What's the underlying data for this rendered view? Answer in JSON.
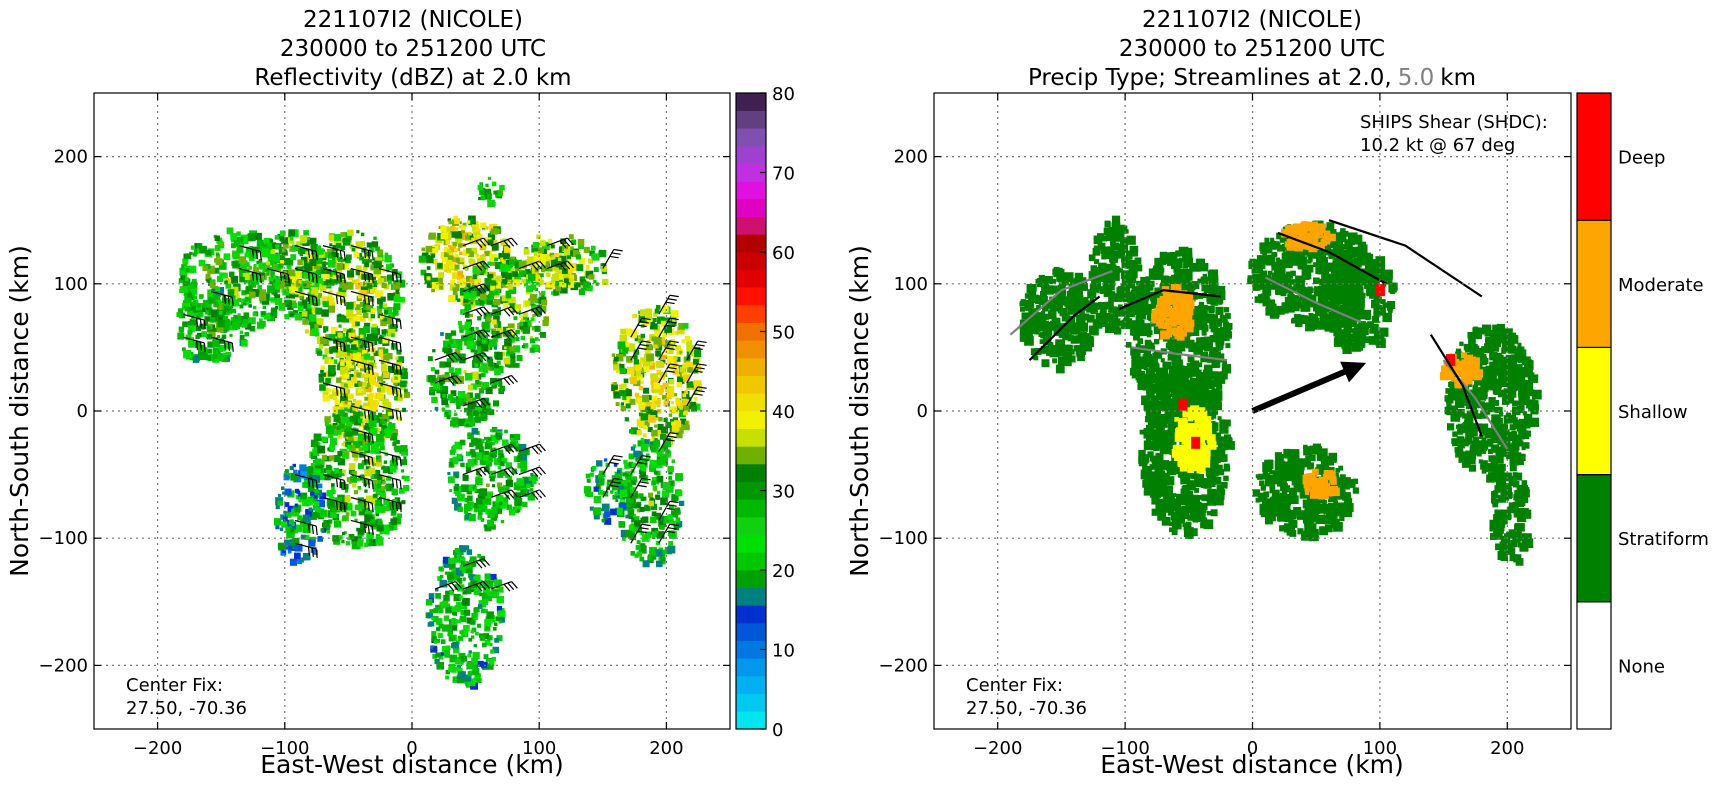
{
  "chart_data": [
    {
      "type": "heatmap",
      "title_lines": [
        "221107I2 (NICOLE)",
        "230000 to 251200 UTC",
        "Reflectivity (dBZ) at 2.0 km"
      ],
      "xlabel": "East-West distance (km)",
      "ylabel": "North-South distance (km)",
      "xlim": [
        -250,
        250
      ],
      "ylim": [
        -250,
        250
      ],
      "xticks": [
        -200,
        -100,
        0,
        100,
        200
      ],
      "yticks": [
        -200,
        -100,
        0,
        100,
        200
      ],
      "xtick_labels": [
        "−200",
        "−100",
        "0",
        "100",
        "200"
      ],
      "ytick_labels": [
        "−200",
        "−100",
        "0",
        "100",
        "200"
      ],
      "grid": true,
      "annotation_lines": [
        "Center Fix:",
        "27.50, -70.36"
      ],
      "colorbar": {
        "min": 0,
        "max": 80,
        "tick_values": [
          0,
          10,
          20,
          30,
          40,
          50,
          60,
          70,
          80
        ],
        "tick_labels": [
          "0",
          "10",
          "20",
          "30",
          "40",
          "50",
          "60",
          "70",
          "80"
        ],
        "colors": [
          "#00e5ee",
          "#00c8f0",
          "#00b0f0",
          "#0098ea",
          "#0078e0",
          "#0058d8",
          "#0030d0",
          "#008080",
          "#00a000",
          "#00c800",
          "#00e000",
          "#10d010",
          "#00b800",
          "#009800",
          "#008000",
          "#70b000",
          "#c8e000",
          "#f0f000",
          "#f0e000",
          "#f0c800",
          "#f0b000",
          "#f09000",
          "#f07000",
          "#ff4000",
          "#ff1000",
          "#e00000",
          "#c80000",
          "#b00000",
          "#d01070",
          "#e000c0",
          "#e010e0",
          "#c030e0",
          "#a040d0",
          "#8050b0",
          "#604080",
          "#402050"
        ]
      },
      "regions": [
        {
          "x": -140,
          "y": 105,
          "rx": 45,
          "ry": 40,
          "dbz": 25
        },
        {
          "x": -160,
          "y": 70,
          "rx": 30,
          "ry": 30,
          "dbz": 22
        },
        {
          "x": -95,
          "y": 110,
          "rx": 30,
          "ry": 35,
          "dbz": 28
        },
        {
          "x": -50,
          "y": 90,
          "rx": 40,
          "ry": 55,
          "dbz": 30
        },
        {
          "x": -40,
          "y": 20,
          "rx": 35,
          "ry": 50,
          "dbz": 33
        },
        {
          "x": -45,
          "y": -50,
          "rx": 40,
          "ry": 55,
          "dbz": 25
        },
        {
          "x": -90,
          "y": -80,
          "rx": 20,
          "ry": 40,
          "dbz": 14
        },
        {
          "x": 40,
          "y": 120,
          "rx": 35,
          "ry": 35,
          "dbz": 35
        },
        {
          "x": 70,
          "y": 80,
          "rx": 35,
          "ry": 45,
          "dbz": 28
        },
        {
          "x": 115,
          "y": 115,
          "rx": 40,
          "ry": 22,
          "dbz": 30
        },
        {
          "x": 40,
          "y": 30,
          "rx": 30,
          "ry": 40,
          "dbz": 24
        },
        {
          "x": 60,
          "y": -50,
          "rx": 35,
          "ry": 40,
          "dbz": 22
        },
        {
          "x": 40,
          "y": -160,
          "rx": 30,
          "ry": 55,
          "dbz": 20
        },
        {
          "x": 190,
          "y": 30,
          "rx": 35,
          "ry": 55,
          "dbz": 33
        },
        {
          "x": 185,
          "y": -70,
          "rx": 25,
          "ry": 50,
          "dbz": 22
        },
        {
          "x": 150,
          "y": -60,
          "rx": 15,
          "ry": 25,
          "dbz": 18
        },
        {
          "x": 60,
          "y": 175,
          "rx": 10,
          "ry": 12,
          "dbz": 25
        }
      ],
      "cores": [
        {
          "x": -40,
          "y": 20,
          "dbz": 38
        },
        {
          "x": 35,
          "y": 130,
          "dbz": 38
        },
        {
          "x": 200,
          "y": 20,
          "dbz": 40
        },
        {
          "x": 110,
          "y": 120,
          "dbz": 36
        }
      ]
    },
    {
      "type": "heatmap",
      "title_lines": [
        "221107I2 (NICOLE)",
        "230000 to 251200 UTC",
        "Precip Type; Streamlines at 2.0,",
        "5.0",
        "km"
      ],
      "xlabel": "East-West distance (km)",
      "ylabel": "North-South distance (km)",
      "xlim": [
        -250,
        250
      ],
      "ylim": [
        -250,
        250
      ],
      "xticks": [
        -200,
        -100,
        0,
        100,
        200
      ],
      "yticks": [
        -200,
        -100,
        0,
        100,
        200
      ],
      "xtick_labels": [
        "−200",
        "−100",
        "0",
        "100",
        "200"
      ],
      "ytick_labels": [
        "−200",
        "−100",
        "0",
        "100",
        "200"
      ],
      "grid": true,
      "annotation_lines": [
        "Center Fix:",
        "27.50, -70.36"
      ],
      "shear_lines": [
        "SHIPS Shear (SHDC):",
        "10.2 kt @ 67 deg"
      ],
      "shear_vector": {
        "speed_kt": 10.2,
        "direction_deg": 67
      },
      "categories": [
        "None",
        "Stratiform",
        "Shallow",
        "Moderate",
        "Deep"
      ],
      "category_colors": [
        "#ffffff",
        "#008000",
        "#ffff00",
        "#ffa500",
        "#ff0000"
      ],
      "regions": [
        {
          "x": -155,
          "y": 75,
          "rx": 30,
          "ry": 40,
          "cat": "Stratiform"
        },
        {
          "x": -110,
          "y": 110,
          "rx": 20,
          "ry": 45,
          "cat": "Stratiform"
        },
        {
          "x": -60,
          "y": 60,
          "rx": 40,
          "ry": 70,
          "cat": "Stratiform"
        },
        {
          "x": -55,
          "y": -30,
          "rx": 35,
          "ry": 65,
          "cat": "Stratiform"
        },
        {
          "x": 45,
          "y": 110,
          "rx": 50,
          "ry": 40,
          "cat": "Stratiform"
        },
        {
          "x": 80,
          "y": 90,
          "rx": 30,
          "ry": 40,
          "cat": "Stratiform"
        },
        {
          "x": 40,
          "y": -60,
          "rx": 40,
          "ry": 35,
          "cat": "Stratiform"
        },
        {
          "x": 185,
          "y": 10,
          "rx": 35,
          "ry": 60,
          "cat": "Stratiform"
        },
        {
          "x": 200,
          "y": -80,
          "rx": 15,
          "ry": 40,
          "cat": "Stratiform"
        },
        {
          "x": -65,
          "y": 80,
          "rx": 15,
          "ry": 20,
          "cat": "Moderate"
        },
        {
          "x": -50,
          "y": -20,
          "rx": 15,
          "ry": 25,
          "cat": "Shallow"
        },
        {
          "x": 40,
          "y": 140,
          "rx": 20,
          "ry": 10,
          "cat": "Moderate"
        },
        {
          "x": 160,
          "y": 35,
          "rx": 15,
          "ry": 12,
          "cat": "Moderate"
        },
        {
          "x": 50,
          "y": -55,
          "rx": 15,
          "ry": 10,
          "cat": "Moderate"
        }
      ],
      "deep_cores": [
        {
          "x": -45,
          "y": -25
        },
        {
          "x": -55,
          "y": 5
        },
        {
          "x": 155,
          "y": 40
        },
        {
          "x": 100,
          "y": 95
        }
      ]
    }
  ]
}
